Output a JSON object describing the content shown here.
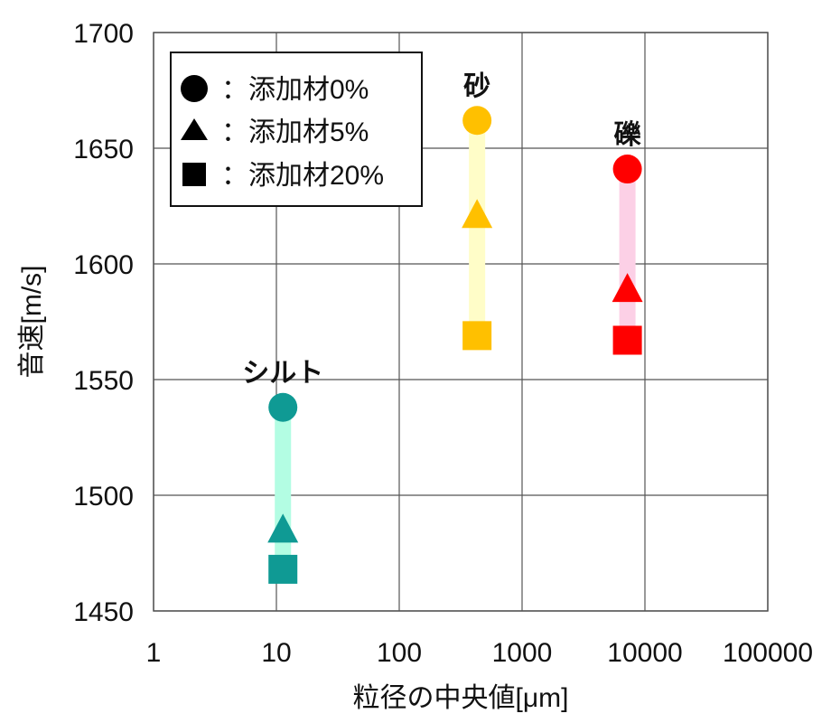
{
  "chart_data": {
    "type": "scatter",
    "title": "",
    "xlabel": "粒径の中央値[μm]",
    "ylabel": "音速[m/s]",
    "xscale": "log",
    "xlim": [
      1,
      100000
    ],
    "ylim": [
      1450,
      1700
    ],
    "x_ticks": [
      "1",
      "10",
      "100",
      "1000",
      "10000",
      "100000"
    ],
    "y_ticks": [
      "1450",
      "1500",
      "1550",
      "1600",
      "1650",
      "1700"
    ],
    "grid": true,
    "legend_position": "upper-left",
    "legend": [
      {
        "marker": "circle",
        "label": "：添加材0%"
      },
      {
        "marker": "triangle",
        "label": "：添加材5%"
      },
      {
        "marker": "square",
        "label": "：添加材20%"
      }
    ],
    "groups": [
      {
        "name": "シルト",
        "x": 11.3,
        "color": "#0f9a94",
        "band_color": "#b3fde3",
        "values": {
          "添加材0%": 1538,
          "添加材5%": 1485,
          "添加材20%": 1468
        }
      },
      {
        "name": "砂",
        "x": 430,
        "color": "#ffc000",
        "band_color": "#fffdc8",
        "values": {
          "添加材0%": 1662,
          "添加材5%": 1621,
          "添加材20%": 1569
        }
      },
      {
        "name": "礫",
        "x": 7200,
        "color": "#ff0000",
        "band_color": "#fcd0e6",
        "values": {
          "添加材0%": 1641,
          "添加材5%": 1589,
          "添加材20%": 1567
        }
      }
    ]
  }
}
